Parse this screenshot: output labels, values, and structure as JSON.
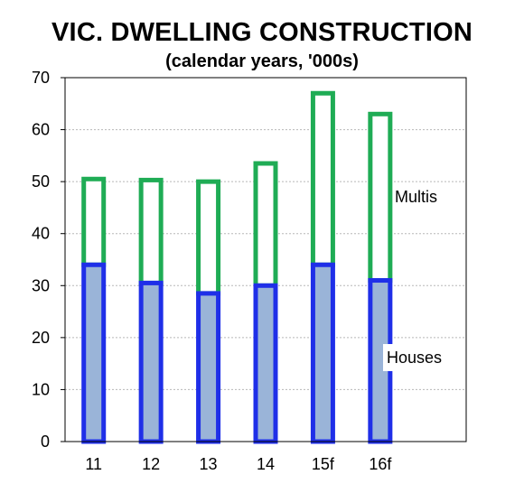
{
  "chart_data": {
    "type": "bar",
    "stacked": true,
    "title": "VIC. DWELLING CONSTRUCTION",
    "subtitle": "(calendar years, '000s)",
    "categories": [
      "11",
      "12",
      "13",
      "14",
      "15f",
      "16f"
    ],
    "series": [
      {
        "name": "Houses",
        "values": [
          34,
          30.5,
          28.5,
          30,
          34,
          31
        ],
        "fill": "#9ab4d8",
        "stroke": "#1f2fe8"
      },
      {
        "name": "Multis",
        "values": [
          16.5,
          19.8,
          21.5,
          23.5,
          33,
          32
        ],
        "fill": "#ffffff",
        "stroke": "#1fac55"
      }
    ],
    "ylim": [
      0,
      70
    ],
    "yticks": [
      0,
      10,
      20,
      30,
      40,
      50,
      60,
      70
    ],
    "grid": true,
    "annotations": [
      "Multis",
      "Houses"
    ]
  }
}
